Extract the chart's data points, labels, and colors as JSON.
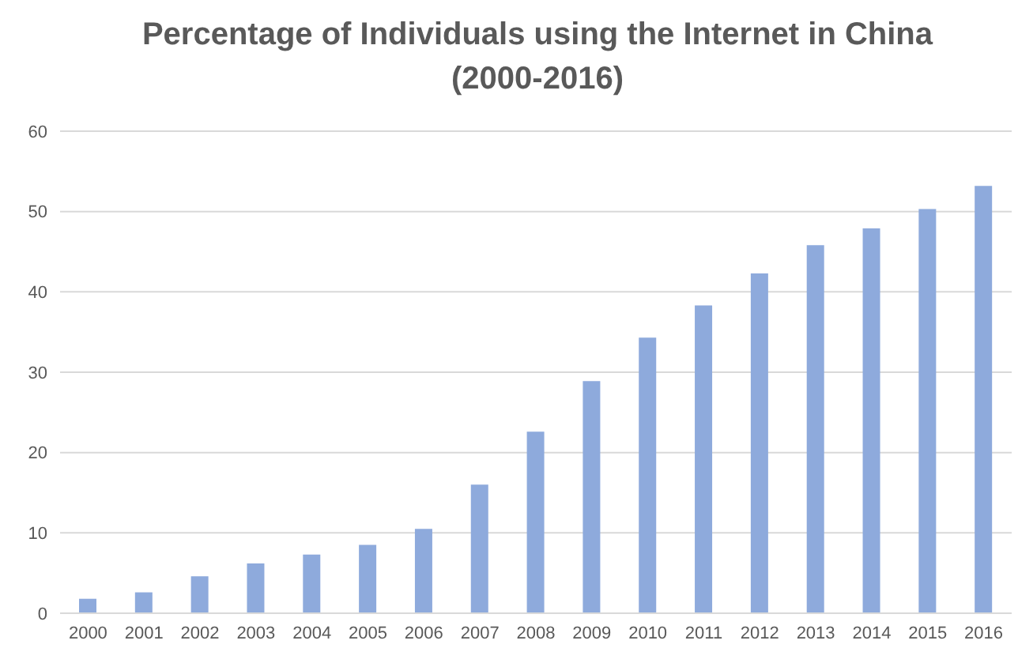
{
  "chart_data": {
    "type": "bar",
    "title": "Percentage of Individuals using the Internet in China\n(2000-2016)",
    "categories": [
      "2000",
      "2001",
      "2002",
      "2003",
      "2004",
      "2005",
      "2006",
      "2007",
      "2008",
      "2009",
      "2010",
      "2011",
      "2012",
      "2013",
      "2014",
      "2015",
      "2016"
    ],
    "values": [
      1.8,
      2.6,
      4.6,
      6.2,
      7.3,
      8.5,
      10.5,
      16,
      22.6,
      28.9,
      34.3,
      38.3,
      42.3,
      45.8,
      47.9,
      50.3,
      53.2
    ],
    "color": "#8eaadc",
    "ylim": [
      0,
      60
    ],
    "yticks": [
      0,
      10,
      20,
      30,
      40,
      50,
      60
    ],
    "grid": "y"
  }
}
